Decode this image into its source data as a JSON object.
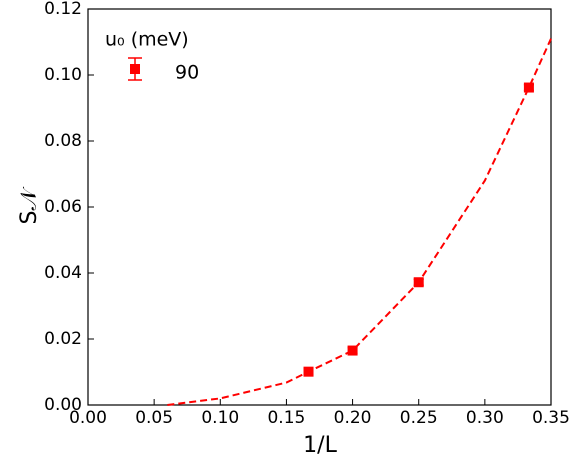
{
  "chart_data": {
    "type": "scatter",
    "xlabel": "1/L",
    "ylabel": "S𝒩",
    "legend_title": "u₀ (meV)",
    "series": [
      {
        "name": "90",
        "color": "#ff0000",
        "x": [
          0.1667,
          0.2,
          0.25,
          0.3333
        ],
        "values": [
          0.0101,
          0.0165,
          0.0372,
          0.0962
        ],
        "errors": [
          0.0009,
          0.0009,
          0.0009,
          0.0009
        ]
      }
    ],
    "fit": {
      "color": "#ff0000",
      "dashed": true,
      "x": [
        0.06,
        0.1,
        0.15,
        0.1667,
        0.2,
        0.25,
        0.3,
        0.3333,
        0.35
      ],
      "values": [
        0,
        0.002,
        0.0068,
        0.0101,
        0.0165,
        0.0372,
        0.068,
        0.0962,
        0.111
      ]
    },
    "xlim": [
      0,
      0.35
    ],
    "ylim": [
      0,
      0.12
    ],
    "xticks": [
      {
        "value": 0,
        "label": "0.00"
      },
      {
        "value": 0.05,
        "label": "0.05"
      },
      {
        "value": 0.1,
        "label": "0.10"
      },
      {
        "value": 0.15,
        "label": "0.15"
      },
      {
        "value": 0.2,
        "label": "0.20"
      },
      {
        "value": 0.25,
        "label": "0.25"
      },
      {
        "value": 0.3,
        "label": "0.30"
      },
      {
        "value": 0.35,
        "label": "0.35"
      }
    ],
    "yticks": [
      {
        "value": 0,
        "label": "0.00"
      },
      {
        "value": 0.02,
        "label": "0.02"
      },
      {
        "value": 0.04,
        "label": "0.04"
      },
      {
        "value": 0.06,
        "label": "0.06"
      },
      {
        "value": 0.08,
        "label": "0.08"
      },
      {
        "value": 0.1,
        "label": "0.10"
      },
      {
        "value": 0.12,
        "label": "0.12"
      }
    ],
    "grid": false,
    "legend": "upper left"
  }
}
